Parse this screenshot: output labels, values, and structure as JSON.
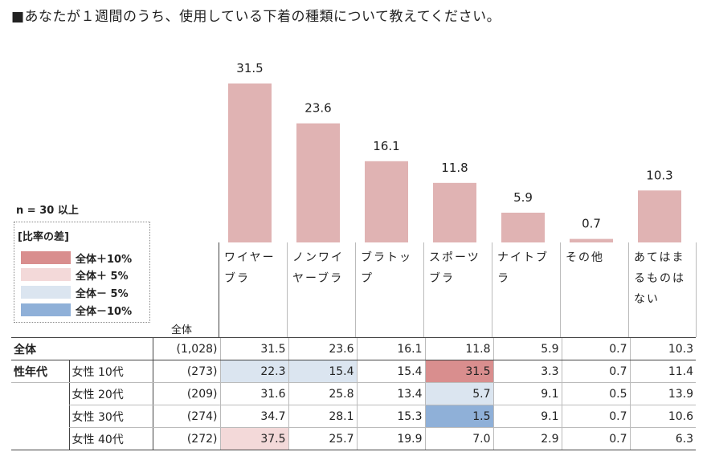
{
  "title": "■あなたが１週間のうち、使用している下着の種類について教えてください。",
  "n_note": "n = 30 以上",
  "legend": {
    "title": "[比率の差]",
    "items": [
      {
        "label": "全体＋10%",
        "color": "#d98e8e"
      },
      {
        "label": "全体＋ 5%",
        "color": "#f3d9d9"
      },
      {
        "label": "全体－ 5%",
        "color": "#dbe5f0"
      },
      {
        "label": "全体－10%",
        "color": "#8fb0d8"
      }
    ]
  },
  "table_header_total": "全体",
  "chart_data": {
    "type": "bar",
    "categories": [
      "ワイヤーブラ",
      "ノンワイヤーブラ",
      "ブラトップ",
      "スポーツブラ",
      "ナイトブラ",
      "その他",
      "あてはまるものはない"
    ],
    "values": [
      31.5,
      23.6,
      16.1,
      11.8,
      5.9,
      0.7,
      10.3
    ],
    "value_labels": [
      "31.5",
      "23.6",
      "16.1",
      "11.8",
      "5.9",
      "0.7",
      "10.3"
    ],
    "bar_color": "#e0b3b3",
    "ylim": [
      0,
      31.5
    ]
  },
  "table": {
    "rows": [
      {
        "group": "全体",
        "label": "",
        "n": "(1,028)",
        "values": [
          "31.5",
          "23.6",
          "16.1",
          "11.8",
          "5.9",
          "0.7",
          "10.3"
        ],
        "hl": [
          "",
          "",
          "",
          "",
          "",
          "",
          ""
        ]
      },
      {
        "group": "性年代",
        "label": "女性 10代",
        "n": "(273)",
        "values": [
          "22.3",
          "15.4",
          "15.4",
          "31.5",
          "3.3",
          "0.7",
          "11.4"
        ],
        "hl": [
          "hm5",
          "hm5",
          "",
          "hp10",
          "",
          "",
          ""
        ]
      },
      {
        "group": "",
        "label": "女性 20代",
        "n": "(209)",
        "values": [
          "31.6",
          "25.8",
          "13.4",
          "5.7",
          "9.1",
          "0.5",
          "13.9"
        ],
        "hl": [
          "",
          "",
          "",
          "hm5",
          "",
          "",
          ""
        ]
      },
      {
        "group": "",
        "label": "女性 30代",
        "n": "(274)",
        "values": [
          "34.7",
          "28.1",
          "15.3",
          "1.5",
          "9.1",
          "0.7",
          "10.6"
        ],
        "hl": [
          "",
          "",
          "",
          "hm10",
          "",
          "",
          ""
        ]
      },
      {
        "group": "",
        "label": "女性 40代",
        "n": "(272)",
        "values": [
          "37.5",
          "25.7",
          "19.9",
          "7.0",
          "2.9",
          "0.7",
          "6.3"
        ],
        "hl": [
          "hp5",
          "",
          "",
          "",
          "",
          "",
          ""
        ]
      }
    ]
  }
}
